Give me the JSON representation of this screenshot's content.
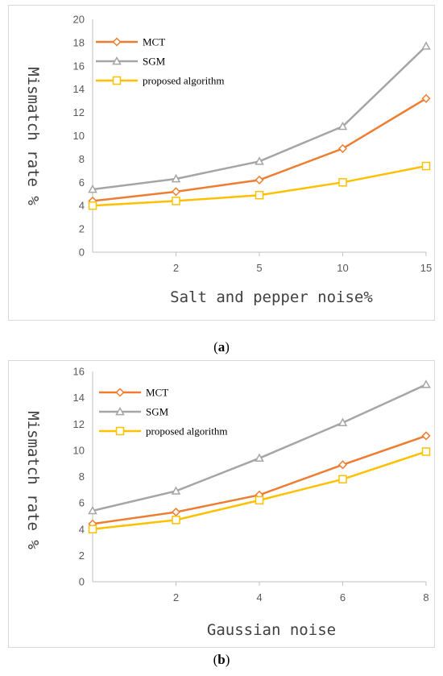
{
  "figure": {
    "caption_a": "a",
    "caption_b": "b"
  },
  "chart_data": [
    {
      "type": "line",
      "panel": "a",
      "categories": [
        "",
        "2",
        "5",
        "10",
        "15"
      ],
      "xlabel": "Salt and pepper noise%",
      "ylabel": "Mismatch rate %",
      "ylim": [
        0,
        20
      ],
      "yticks": [
        0,
        2,
        4,
        6,
        8,
        10,
        12,
        14,
        16,
        18,
        20
      ],
      "legend_position": "top-left",
      "grid": false,
      "series": [
        {
          "name": "MCT",
          "color": "#ed7d31",
          "marker": "diamond",
          "values": [
            4.4,
            5.2,
            6.2,
            8.9,
            13.2
          ]
        },
        {
          "name": "SGM",
          "color": "#a5a5a5",
          "marker": "triangle",
          "values": [
            5.4,
            6.3,
            7.8,
            10.8,
            17.7
          ]
        },
        {
          "name": "proposed algorithm",
          "color": "#ffc000",
          "marker": "square",
          "values": [
            4.0,
            4.4,
            4.9,
            6.0,
            7.4
          ]
        }
      ]
    },
    {
      "type": "line",
      "panel": "b",
      "categories": [
        "",
        "2",
        "4",
        "6",
        "8"
      ],
      "xlabel": "Gaussian noise",
      "ylabel": "Mismatch rate %",
      "ylim": [
        0,
        16
      ],
      "yticks": [
        0,
        2,
        4,
        6,
        8,
        10,
        12,
        14,
        16
      ],
      "legend_position": "top-left",
      "grid": false,
      "series": [
        {
          "name": "MCT",
          "color": "#ed7d31",
          "marker": "diamond",
          "values": [
            4.4,
            5.3,
            6.6,
            8.9,
            11.1
          ]
        },
        {
          "name": "SGM",
          "color": "#a5a5a5",
          "marker": "triangle",
          "values": [
            5.4,
            6.9,
            9.4,
            12.1,
            15.0
          ]
        },
        {
          "name": "proposed algorithm",
          "color": "#ffc000",
          "marker": "square",
          "values": [
            4.0,
            4.7,
            6.2,
            7.8,
            9.9
          ]
        }
      ]
    }
  ]
}
